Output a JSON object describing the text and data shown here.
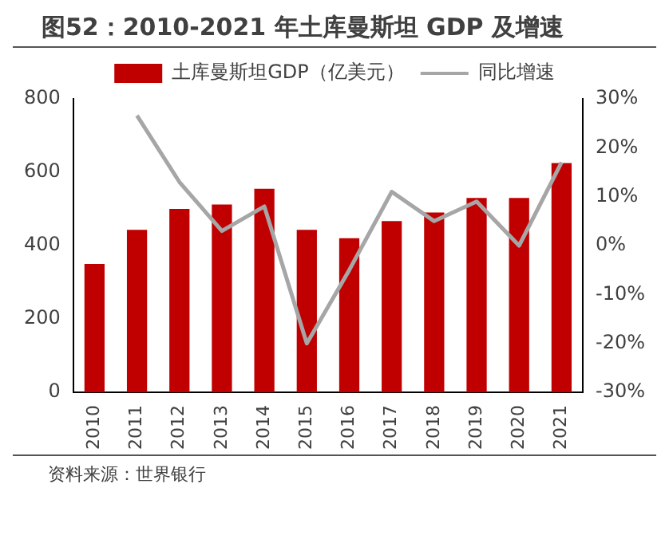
{
  "chart_data": {
    "type": "bar",
    "title": "图52：2010-2021 年土库曼斯坦 GDP 及增速",
    "categories": [
      "2010",
      "2011",
      "2012",
      "2013",
      "2014",
      "2015",
      "2016",
      "2017",
      "2018",
      "2019",
      "2020",
      "2021"
    ],
    "series": [
      {
        "name": "土库曼斯坦GDP（亿美元）",
        "color": "#c00000",
        "values": [
          350,
          443,
          500,
          512,
          555,
          443,
          420,
          467,
          490,
          530,
          530,
          625
        ]
      },
      {
        "name": "同比增速",
        "type": "line",
        "axis": "y2",
        "color": "#a6a6a6",
        "values": [
          null,
          26.6,
          13,
          3,
          8,
          -20,
          -5,
          11,
          5,
          9,
          0,
          17
        ]
      }
    ],
    "ylim": [
      0,
      800
    ],
    "yticks": [
      0,
      200,
      400,
      600,
      800
    ],
    "y2lim": [
      -30,
      30
    ],
    "y2ticks": [
      {
        "value": -30,
        "label": "-30%"
      },
      {
        "value": -20,
        "label": "-20%"
      },
      {
        "value": -10,
        "label": "-10%"
      },
      {
        "value": 0,
        "label": "0%"
      },
      {
        "value": 10,
        "label": "10%"
      },
      {
        "value": 20,
        "label": "20%"
      },
      {
        "value": 30,
        "label": "30%"
      }
    ],
    "legend": "top",
    "grid": false,
    "marker": "none",
    "annotations": [
      "资料来源：世界银行"
    ]
  }
}
